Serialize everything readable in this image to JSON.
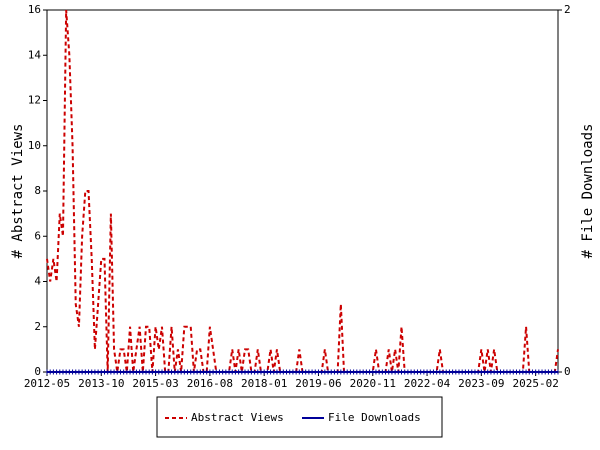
{
  "chart_data": {
    "type": "line",
    "y_label": "# Abstract Views",
    "y2_label": "# File Downloads",
    "categories": [
      "2012-05",
      null,
      null,
      null,
      null,
      null,
      null,
      null,
      null,
      null,
      null,
      null,
      null,
      null,
      null,
      null,
      null,
      "2013-10",
      null,
      null,
      null,
      null,
      null,
      null,
      null,
      null,
      null,
      null,
      null,
      null,
      null,
      null,
      null,
      null,
      "2015-03",
      null,
      null,
      null,
      null,
      null,
      null,
      null,
      null,
      null,
      null,
      null,
      null,
      null,
      null,
      null,
      null,
      "2016-08",
      null,
      null,
      null,
      null,
      null,
      null,
      null,
      null,
      null,
      null,
      null,
      null,
      null,
      null,
      null,
      null,
      "2018-01",
      null,
      null,
      null,
      null,
      null,
      null,
      null,
      null,
      null,
      null,
      null,
      null,
      null,
      null,
      null,
      null,
      "2019-06",
      null,
      null,
      null,
      null,
      null,
      null,
      null,
      null,
      null,
      null,
      null,
      null,
      null,
      null,
      null,
      null,
      "2020-11",
      null,
      null,
      null,
      null,
      null,
      null,
      null,
      null,
      null,
      null,
      null,
      null,
      null,
      null,
      null,
      null,
      "2022-04",
      null,
      null,
      null,
      null,
      null,
      null,
      null,
      null,
      null,
      null,
      null,
      null,
      null,
      null,
      null,
      null,
      "2023-09",
      null,
      null,
      null,
      null,
      null,
      null,
      null,
      null,
      null,
      null,
      null,
      null,
      null,
      null,
      null,
      null,
      "2025-02",
      null,
      null,
      null,
      null,
      null,
      null,
      null
    ],
    "series": [
      {
        "name": "Abstract Views",
        "color": "#cc0000",
        "axis": "y",
        "values": [
          5,
          4,
          5,
          4,
          7,
          6,
          16,
          14,
          10,
          3,
          2,
          6,
          8,
          8,
          5,
          1,
          3,
          5,
          5,
          0,
          7,
          1,
          0,
          1,
          1,
          0,
          2,
          0,
          1,
          2,
          0,
          2,
          2,
          0,
          2,
          1,
          2,
          0,
          0,
          2,
          0,
          1,
          0,
          2,
          2,
          2,
          0,
          1,
          1,
          0,
          0,
          2,
          1,
          0,
          0,
          0,
          0,
          0,
          1,
          0,
          1,
          0,
          1,
          1,
          0,
          0,
          1,
          0,
          0,
          0,
          1,
          0,
          1,
          0,
          0,
          0,
          0,
          0,
          0,
          1,
          0,
          0,
          0,
          0,
          0,
          0,
          0,
          1,
          0,
          0,
          0,
          0,
          3,
          0,
          0,
          0,
          0,
          0,
          0,
          0,
          0,
          0,
          0,
          1,
          0,
          0,
          0,
          1,
          0,
          1,
          0,
          2,
          0,
          0,
          0,
          0,
          0,
          0,
          0,
          0,
          0,
          0,
          0,
          1,
          0,
          0,
          0,
          0,
          0,
          0,
          0,
          0,
          0,
          0,
          0,
          0,
          1,
          0,
          1,
          0,
          1,
          0,
          0,
          0,
          0,
          0,
          0,
          0,
          0,
          0,
          2,
          0,
          0,
          0,
          0,
          0,
          0,
          0,
          0,
          0,
          1
        ]
      },
      {
        "name": "File Downloads",
        "color": "#000099",
        "axis": "y2",
        "values": [
          0,
          0,
          0,
          0,
          0,
          0,
          0,
          0,
          0,
          0,
          0,
          0,
          0,
          0,
          0,
          0,
          0,
          0,
          0,
          0,
          0,
          0,
          0,
          0,
          0,
          0,
          0,
          0,
          0,
          0,
          0,
          0,
          0,
          0,
          0,
          0,
          0,
          0,
          0,
          0,
          0,
          0,
          0,
          0,
          0,
          0,
          0,
          0,
          0,
          0,
          0,
          0,
          0,
          0,
          0,
          0,
          0,
          0,
          0,
          0,
          0,
          0,
          0,
          0,
          0,
          0,
          0,
          0,
          0,
          0,
          0,
          0,
          0,
          0,
          0,
          0,
          0,
          0,
          0,
          0,
          0,
          0,
          0,
          0,
          0,
          0,
          0,
          0,
          0,
          0,
          0,
          0,
          0,
          0,
          0,
          0,
          0,
          0,
          0,
          0,
          0,
          0,
          0,
          0,
          0,
          0,
          0,
          0,
          0,
          0,
          0,
          0,
          0,
          0,
          0,
          0,
          0,
          0,
          0,
          0,
          0,
          0,
          0,
          0,
          0,
          0,
          0,
          0,
          0,
          0,
          0,
          0,
          0,
          0,
          0,
          0,
          0,
          0,
          0,
          0,
          0,
          0,
          0,
          0,
          0,
          0,
          0,
          0,
          0,
          0,
          0,
          0,
          0,
          0,
          0,
          0,
          0,
          0,
          0,
          0,
          0
        ]
      }
    ],
    "ylim": [
      0,
      16
    ],
    "yticks": [
      0,
      2,
      4,
      6,
      8,
      10,
      12,
      14,
      16
    ],
    "y2lim": [
      0,
      2
    ],
    "y2ticks": [
      0,
      2
    ],
    "legend": "bottom"
  }
}
